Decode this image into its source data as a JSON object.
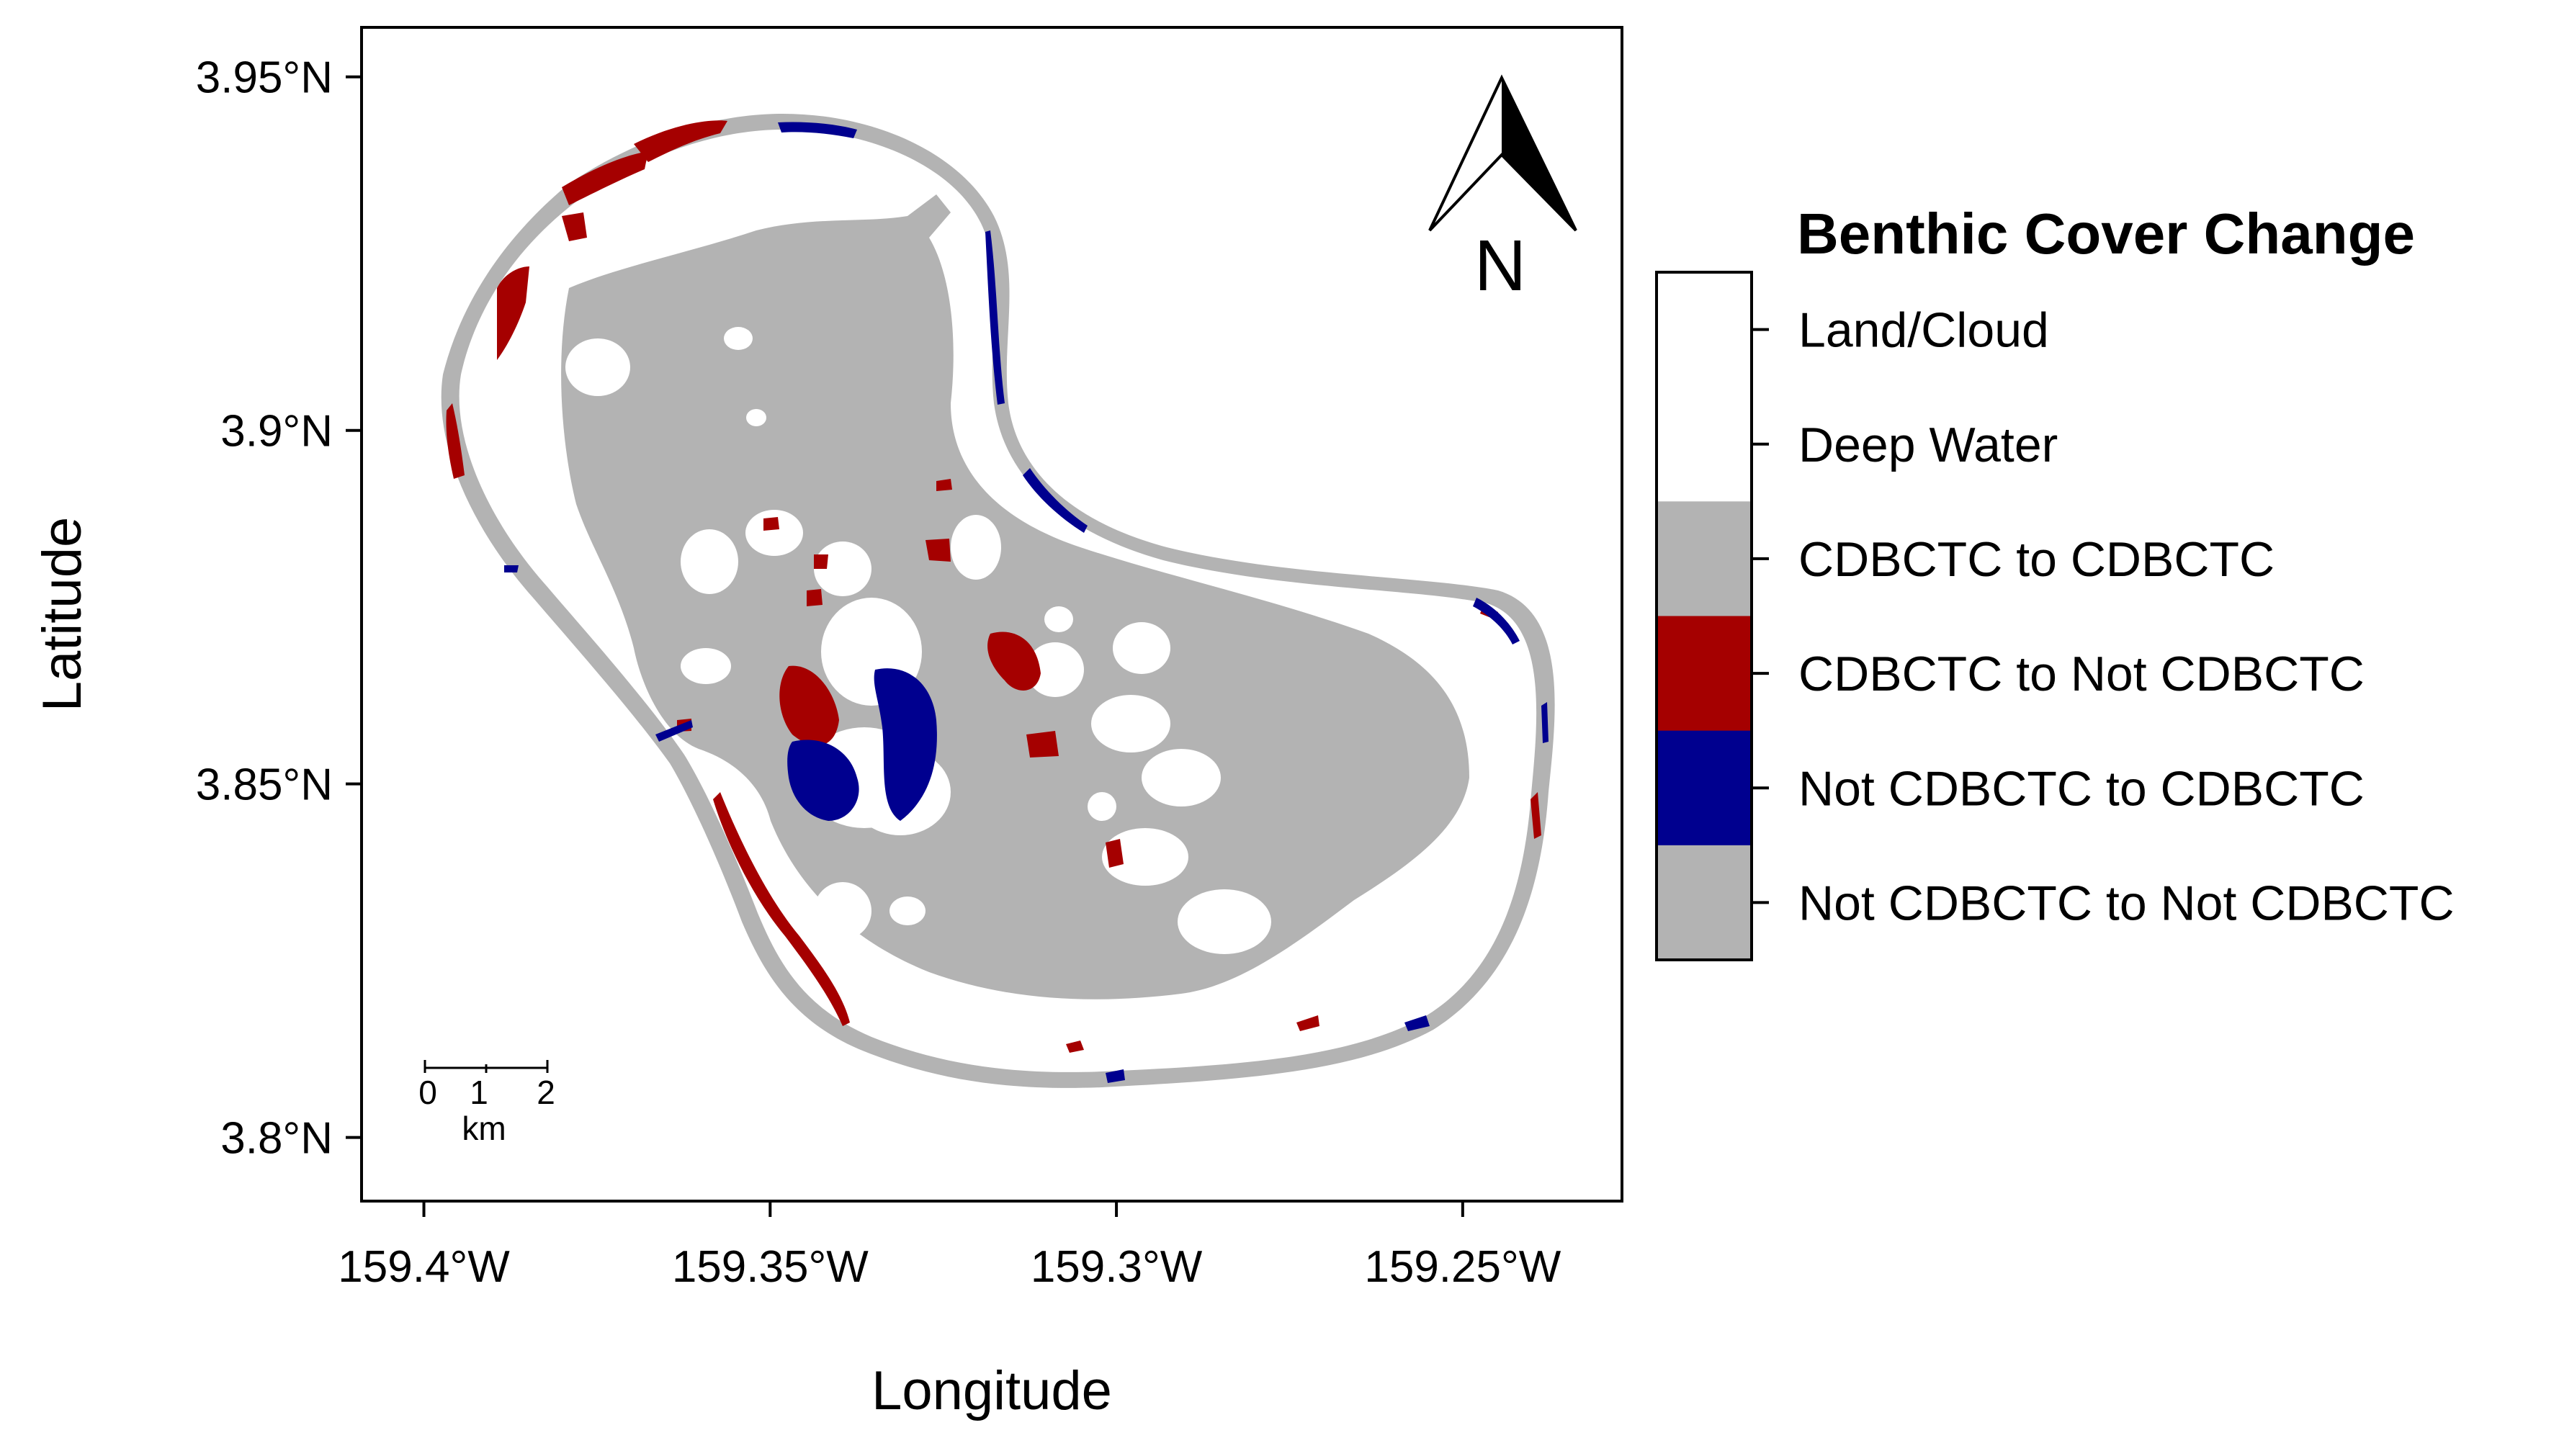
{
  "colors": {
    "land_cloud": "#ffffff",
    "deep_water": "#ffffff",
    "stable_cdbctc": "#b3b3b3",
    "loss": "#a50000",
    "gain": "#00008f",
    "stable_not_cdbctc": "#b3b3b3"
  },
  "axes": {
    "x_title": "Longitude",
    "y_title": "Latitude",
    "x_ticks": [
      {
        "value": -159.4,
        "label": "159.4°W"
      },
      {
        "value": -159.35,
        "label": "159.35°W"
      },
      {
        "value": -159.3,
        "label": "159.3°W"
      },
      {
        "value": -159.25,
        "label": "159.25°W"
      }
    ],
    "y_ticks": [
      {
        "value": 3.95,
        "label": "3.95°N"
      },
      {
        "value": 3.9,
        "label": "3.9°N"
      },
      {
        "value": 3.85,
        "label": "3.85°N"
      },
      {
        "value": 3.8,
        "label": "3.8°N"
      }
    ],
    "x_range": [
      -159.409,
      -159.227
    ],
    "y_range": [
      3.791,
      3.957
    ]
  },
  "north_arrow": {
    "label": "N"
  },
  "scale_bar": {
    "ticks": [
      "0",
      "1",
      "2"
    ],
    "unit": "km"
  },
  "legend": {
    "title": "Benthic Cover Change",
    "items": [
      {
        "label": "Land/Cloud",
        "color_key": "land_cloud"
      },
      {
        "label": "Deep Water",
        "color_key": "deep_water"
      },
      {
        "label": "CDBCTC to CDBCTC",
        "color_key": "stable_cdbctc"
      },
      {
        "label": "CDBCTC to Not CDBCTC",
        "color_key": "loss"
      },
      {
        "label": "Not CDBCTC to CDBCTC",
        "color_key": "gain"
      },
      {
        "label": "Not CDBCTC to Not CDBCTC",
        "color_key": "stable_not_cdbctc"
      }
    ]
  }
}
